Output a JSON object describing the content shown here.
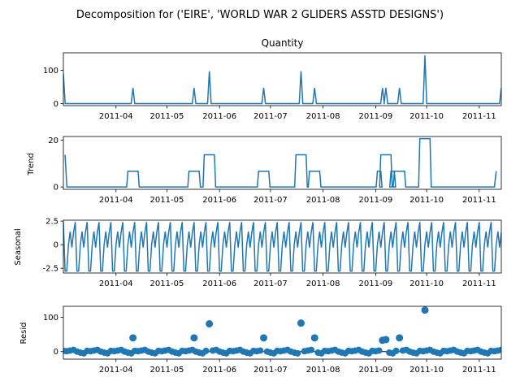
{
  "figure": {
    "suptitle": "Decomposition for ('EIRE', 'WORLD WAR 2 GLIDERS ASSTD DESIGNS')"
  },
  "chart_data": [
    {
      "type": "line",
      "panel": "observed",
      "title": "Quantity",
      "ylabel": "",
      "ylim": [
        -6,
        152
      ],
      "yticks": [
        0,
        100
      ],
      "x_range": [
        "2011-03-01",
        "2011-11-14"
      ],
      "x_ticks": [
        "2011-04",
        "2011-05",
        "2011-06",
        "2011-07",
        "2011-08",
        "2011-09",
        "2011-10",
        "2011-11"
      ],
      "baseline": 0,
      "spikes": [
        {
          "date": "2011-03-01",
          "value": 90
        },
        {
          "date": "2011-04-11",
          "value": 47
        },
        {
          "date": "2011-05-17",
          "value": 47
        },
        {
          "date": "2011-05-26",
          "value": 97
        },
        {
          "date": "2011-06-27",
          "value": 47
        },
        {
          "date": "2011-07-19",
          "value": 97
        },
        {
          "date": "2011-07-27",
          "value": 47
        },
        {
          "date": "2011-09-05",
          "value": 47
        },
        {
          "date": "2011-09-07",
          "value": 47
        },
        {
          "date": "2011-09-15",
          "value": 47
        },
        {
          "date": "2011-09-30",
          "value": 144
        },
        {
          "date": "2011-11-14",
          "value": 47
        }
      ],
      "color": "#1f77b4"
    },
    {
      "type": "line",
      "panel": "trend",
      "title": "",
      "ylabel": "Trend",
      "ylim": [
        -1,
        21.5
      ],
      "yticks": [
        0,
        20
      ],
      "x_range": [
        "2011-03-01",
        "2011-11-14"
      ],
      "x_ticks": [
        "2011-04",
        "2011-05",
        "2011-06",
        "2011-07",
        "2011-08",
        "2011-09",
        "2011-10",
        "2011-11"
      ],
      "start": {
        "date": "2011-03-02",
        "value": 13.7
      },
      "plateaus": [
        {
          "from": "2011-04-08",
          "to": "2011-04-14",
          "value": 6.7
        },
        {
          "from": "2011-05-14",
          "to": "2011-05-20",
          "value": 6.7
        },
        {
          "from": "2011-05-23",
          "to": "2011-05-29",
          "value": 13.7
        },
        {
          "from": "2011-06-24",
          "to": "2011-06-30",
          "value": 6.7
        },
        {
          "from": "2011-07-16",
          "to": "2011-07-22",
          "value": 13.7
        },
        {
          "from": "2011-07-24",
          "to": "2011-07-30",
          "value": 6.7
        },
        {
          "from": "2011-09-02",
          "to": "2011-09-04",
          "value": 6.7
        },
        {
          "from": "2011-09-04",
          "to": "2011-09-10",
          "value": 13.7
        },
        {
          "from": "2011-09-10",
          "to": "2011-09-12",
          "value": 6.7
        },
        {
          "from": "2011-09-12",
          "to": "2011-09-18",
          "value": 6.7
        },
        {
          "from": "2011-09-27",
          "to": "2011-10-03",
          "value": 20.6
        }
      ],
      "end": {
        "date": "2011-11-11",
        "value": 6.7
      },
      "color": "#1f77b4"
    },
    {
      "type": "line",
      "panel": "seasonal",
      "title": "",
      "ylabel": "Seasonal",
      "ylim": [
        -3.0,
        2.6
      ],
      "yticks": [
        -2.5,
        0.0,
        2.5
      ],
      "period_days": 7,
      "weekly_pattern": [
        2.4,
        -2.8,
        -2.8,
        0.0,
        1.4,
        -0.3,
        1.3
      ],
      "x_range": [
        "2011-03-01",
        "2011-11-14"
      ],
      "x_ticks": [
        "2011-04",
        "2011-05",
        "2011-06",
        "2011-07",
        "2011-08",
        "2011-09",
        "2011-10",
        "2011-11"
      ],
      "color": "#1f77b4"
    },
    {
      "type": "scatter",
      "panel": "resid",
      "title": "",
      "ylabel": "Resid",
      "ylim": [
        -22,
        132
      ],
      "yticks": [
        0,
        100
      ],
      "baseline": 0,
      "x_range": [
        "2011-03-01",
        "2011-11-14"
      ],
      "x_ticks": [
        "2011-04",
        "2011-05",
        "2011-06",
        "2011-07",
        "2011-08",
        "2011-09",
        "2011-10",
        "2011-11"
      ],
      "outliers": [
        {
          "date": "2011-04-11",
          "value": 40
        },
        {
          "date": "2011-05-17",
          "value": 40
        },
        {
          "date": "2011-05-26",
          "value": 81
        },
        {
          "date": "2011-06-27",
          "value": 40
        },
        {
          "date": "2011-07-19",
          "value": 83
        },
        {
          "date": "2011-07-27",
          "value": 40
        },
        {
          "date": "2011-09-05",
          "value": 33
        },
        {
          "date": "2011-09-07",
          "value": 35
        },
        {
          "date": "2011-09-15",
          "value": 40
        },
        {
          "date": "2011-09-30",
          "value": 121
        }
      ],
      "color": "#1f77b4"
    }
  ]
}
